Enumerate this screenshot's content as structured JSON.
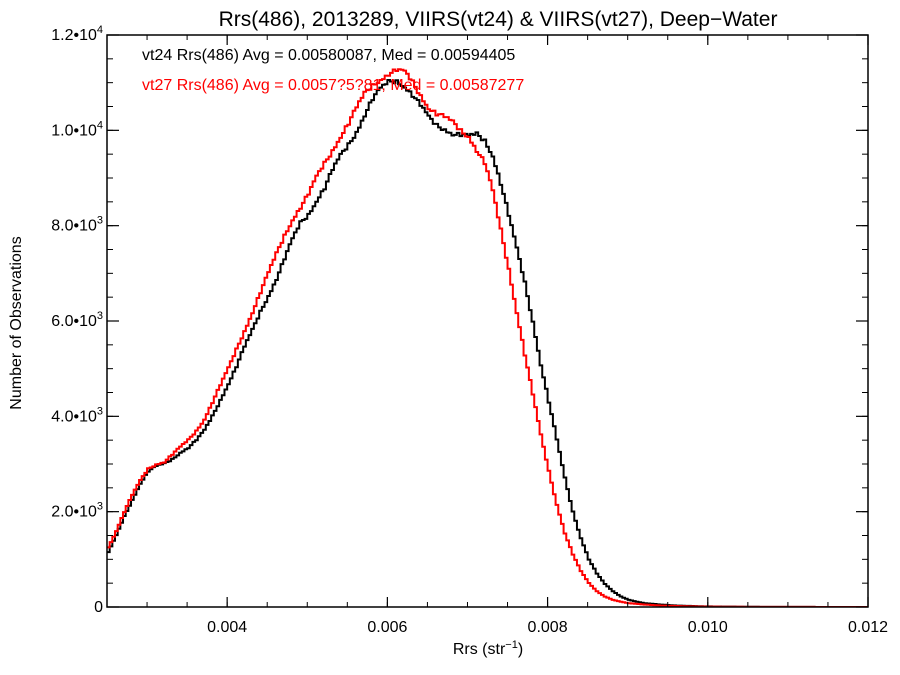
{
  "chart_data": {
    "type": "line",
    "step": true,
    "title": "Rrs(486), 2013289, VIIRS(vt24) & VIIRS(vt27), Deep−Water",
    "xlabel": "Rrs (str",
    "xlabel_sup": "−1",
    "xlabel_close": ")",
    "ylabel": "Number of Observations",
    "xlim": [
      0.0025,
      0.012
    ],
    "ylim": [
      0,
      12000
    ],
    "x_ticks": [
      {
        "value": 0.004,
        "label": "0.004"
      },
      {
        "value": 0.006,
        "label": "0.006"
      },
      {
        "value": 0.008,
        "label": "0.008"
      },
      {
        "value": 0.01,
        "label": "0.010"
      },
      {
        "value": 0.012,
        "label": "0.012"
      }
    ],
    "y_ticks": [
      {
        "value": 0,
        "mant": "0",
        "exp": ""
      },
      {
        "value": 2000,
        "mant": "2.0•10",
        "exp": "3"
      },
      {
        "value": 4000,
        "mant": "4.0•10",
        "exp": "3"
      },
      {
        "value": 6000,
        "mant": "6.0•10",
        "exp": "3"
      },
      {
        "value": 8000,
        "mant": "8.0•10",
        "exp": "3"
      },
      {
        "value": 10000,
        "mant": "1.0•10",
        "exp": "4"
      },
      {
        "value": 12000,
        "mant": "1.2•10",
        "exp": "4"
      }
    ],
    "annotations": [
      {
        "text": "vt24 Rrs(486) Avg = 0.00580087, Med = 0.00594405",
        "color": "#000000"
      },
      {
        "text": "vt27 Rrs(486) Avg = 0.0057?5?81, Med = 0.00587277",
        "color": "#ff0000"
      }
    ],
    "series": [
      {
        "color": "#000000",
        "points": [
          [
            0.0025,
            1150
          ],
          [
            0.0026,
            1500
          ],
          [
            0.0027,
            1900
          ],
          [
            0.0028,
            2250
          ],
          [
            0.0029,
            2600
          ],
          [
            0.003,
            2850
          ],
          [
            0.0031,
            2950
          ],
          [
            0.0032,
            3000
          ],
          [
            0.0033,
            3100
          ],
          [
            0.0034,
            3250
          ],
          [
            0.0035,
            3350
          ],
          [
            0.0036,
            3500
          ],
          [
            0.0037,
            3700
          ],
          [
            0.0038,
            4000
          ],
          [
            0.0039,
            4350
          ],
          [
            0.004,
            4700
          ],
          [
            0.0041,
            5050
          ],
          [
            0.0042,
            5450
          ],
          [
            0.0043,
            5800
          ],
          [
            0.0044,
            6200
          ],
          [
            0.0045,
            6550
          ],
          [
            0.0046,
            6900
          ],
          [
            0.0047,
            7300
          ],
          [
            0.0048,
            7700
          ],
          [
            0.0049,
            8050
          ],
          [
            0.005,
            8250
          ],
          [
            0.0051,
            8550
          ],
          [
            0.0052,
            8800
          ],
          [
            0.0053,
            9150
          ],
          [
            0.0054,
            9450
          ],
          [
            0.0055,
            9700
          ],
          [
            0.0056,
            10000
          ],
          [
            0.0057,
            10350
          ],
          [
            0.0058,
            10650
          ],
          [
            0.0059,
            10850
          ],
          [
            0.006,
            11000
          ],
          [
            0.0061,
            11050
          ],
          [
            0.0062,
            10950
          ],
          [
            0.0063,
            10750
          ],
          [
            0.0064,
            10500
          ],
          [
            0.0065,
            10250
          ],
          [
            0.0066,
            10100
          ],
          [
            0.0067,
            10050
          ],
          [
            0.0068,
            9950
          ],
          [
            0.0069,
            9900
          ],
          [
            0.007,
            9850
          ],
          [
            0.0071,
            9900
          ],
          [
            0.0072,
            9800
          ],
          [
            0.0073,
            9500
          ],
          [
            0.0074,
            8900
          ],
          [
            0.0075,
            8200
          ],
          [
            0.0076,
            7500
          ],
          [
            0.0077,
            6800
          ],
          [
            0.0078,
            6000
          ],
          [
            0.0079,
            5100
          ],
          [
            0.008,
            4300
          ],
          [
            0.0081,
            3500
          ],
          [
            0.0082,
            2700
          ],
          [
            0.0083,
            2000
          ],
          [
            0.0084,
            1450
          ],
          [
            0.0085,
            1000
          ],
          [
            0.0086,
            700
          ],
          [
            0.0087,
            480
          ],
          [
            0.0088,
            330
          ],
          [
            0.0089,
            220
          ],
          [
            0.009,
            150
          ],
          [
            0.0091,
            110
          ],
          [
            0.0092,
            80
          ],
          [
            0.0094,
            50
          ],
          [
            0.0096,
            30
          ],
          [
            0.0099,
            15
          ],
          [
            0.0102,
            8
          ],
          [
            0.0106,
            4
          ],
          [
            0.011,
            2
          ],
          [
            0.012,
            0
          ]
        ]
      },
      {
        "color": "#ff0000",
        "points": [
          [
            0.0025,
            1250
          ],
          [
            0.0026,
            1600
          ],
          [
            0.0027,
            2000
          ],
          [
            0.0028,
            2350
          ],
          [
            0.0029,
            2650
          ],
          [
            0.003,
            2900
          ],
          [
            0.0031,
            3000
          ],
          [
            0.0032,
            3050
          ],
          [
            0.0033,
            3200
          ],
          [
            0.0034,
            3350
          ],
          [
            0.0035,
            3500
          ],
          [
            0.0036,
            3700
          ],
          [
            0.0037,
            3950
          ],
          [
            0.0038,
            4300
          ],
          [
            0.0039,
            4650
          ],
          [
            0.004,
            5000
          ],
          [
            0.0041,
            5400
          ],
          [
            0.0042,
            5800
          ],
          [
            0.0043,
            6200
          ],
          [
            0.0044,
            6600
          ],
          [
            0.0045,
            7000
          ],
          [
            0.0046,
            7400
          ],
          [
            0.0047,
            7800
          ],
          [
            0.0048,
            8150
          ],
          [
            0.0049,
            8400
          ],
          [
            0.005,
            8650
          ],
          [
            0.0051,
            9000
          ],
          [
            0.0052,
            9300
          ],
          [
            0.0053,
            9600
          ],
          [
            0.0054,
            9900
          ],
          [
            0.0055,
            10150
          ],
          [
            0.0056,
            10450
          ],
          [
            0.0057,
            10750
          ],
          [
            0.0058,
            10950
          ],
          [
            0.0059,
            11100
          ],
          [
            0.006,
            11200
          ],
          [
            0.0061,
            11250
          ],
          [
            0.0062,
            11200
          ],
          [
            0.0063,
            11000
          ],
          [
            0.0064,
            10750
          ],
          [
            0.0065,
            10500
          ],
          [
            0.0066,
            10350
          ],
          [
            0.0067,
            10250
          ],
          [
            0.0068,
            10150
          ],
          [
            0.0069,
            10000
          ],
          [
            0.007,
            9900
          ],
          [
            0.0071,
            9600
          ],
          [
            0.0072,
            9300
          ],
          [
            0.0073,
            8700
          ],
          [
            0.0074,
            7900
          ],
          [
            0.0075,
            7100
          ],
          [
            0.0076,
            6200
          ],
          [
            0.0077,
            5300
          ],
          [
            0.0078,
            4450
          ],
          [
            0.0079,
            3600
          ],
          [
            0.008,
            2850
          ],
          [
            0.0081,
            2150
          ],
          [
            0.0082,
            1550
          ],
          [
            0.0083,
            1100
          ],
          [
            0.0084,
            750
          ],
          [
            0.0085,
            500
          ],
          [
            0.0086,
            330
          ],
          [
            0.0087,
            220
          ],
          [
            0.0088,
            150
          ],
          [
            0.0089,
            110
          ],
          [
            0.009,
            80
          ],
          [
            0.0092,
            50
          ],
          [
            0.0094,
            30
          ],
          [
            0.0097,
            15
          ],
          [
            0.01,
            8
          ],
          [
            0.0104,
            4
          ],
          [
            0.011,
            2
          ],
          [
            0.012,
            0
          ]
        ]
      }
    ]
  }
}
